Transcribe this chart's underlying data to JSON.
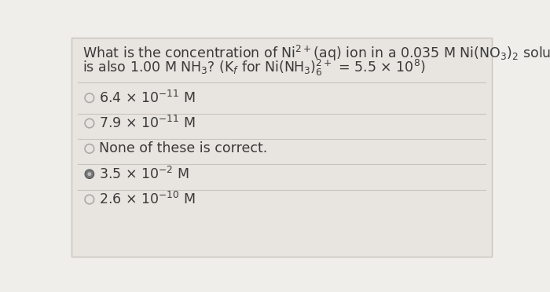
{
  "bg_color": "#f0eeeb",
  "card_color": "#e8e5e0",
  "border_color": "#c8c4bc",
  "text_color": "#3a3a3a",
  "separator_color": "#c8c4bc",
  "options": [
    {
      "radio_filled": false
    },
    {
      "radio_filled": false
    },
    {
      "radio_filled": false
    },
    {
      "radio_filled": true
    },
    {
      "radio_filled": false
    }
  ],
  "font_size_question": 12.5,
  "font_size_options": 12.5,
  "radio_color_empty": "#aaaaaa",
  "radio_color_filled": "#666666"
}
